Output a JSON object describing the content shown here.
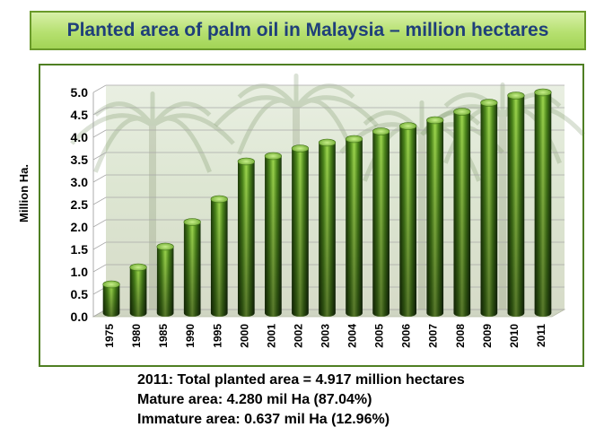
{
  "title": "Planted area of palm oil in Malaysia – million hectares",
  "chart_data": {
    "type": "bar",
    "ylabel": "Million Ha.",
    "xlabel": "",
    "ylim": [
      0,
      5.0
    ],
    "yticks": [
      "0.0",
      "0.5",
      "1.0",
      "1.5",
      "2.0",
      "2.5",
      "3.0",
      "3.5",
      "4.0",
      "4.5",
      "5.0"
    ],
    "categories": [
      "1975",
      "1980",
      "1985",
      "1990",
      "1995",
      "2000",
      "2001",
      "2002",
      "2003",
      "2004",
      "2005",
      "2006",
      "2007",
      "2008",
      "2009",
      "2010",
      "2011"
    ],
    "values": [
      0.64,
      1.02,
      1.48,
      2.03,
      2.54,
      3.38,
      3.5,
      3.67,
      3.8,
      3.88,
      4.05,
      4.17,
      4.3,
      4.49,
      4.69,
      4.85,
      4.92
    ],
    "bar_color": "#4e8a1c",
    "grid": true
  },
  "notes": [
    "2011: Total planted area = 4.917 million hectares",
    "Mature area: 4.280 mil Ha (87.04%)",
    "Immature area: 0.637 mil Ha (12.96%)"
  ]
}
